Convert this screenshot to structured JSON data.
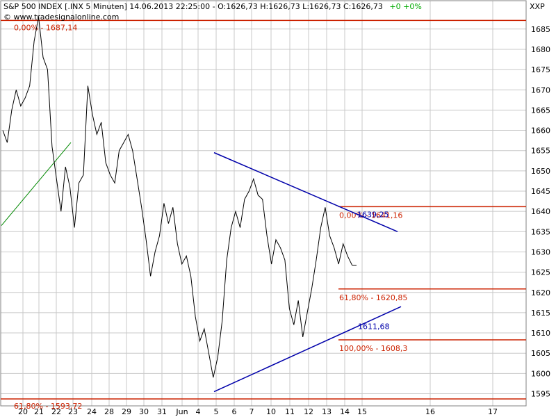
{
  "header": {
    "title": "S&P 500 INDEX [.INX  5 Minuten] 14.06.2013 22:25:00 - O:1626,73 H:1626,73 L:1626,73 C:1626,73",
    "change": "+0  +0%",
    "watermark": "© www.tradesignalonline.com",
    "corner_label": "XXP"
  },
  "chart_data": {
    "type": "line",
    "title": "S&P 500 INDEX [.INX  5 Minuten]",
    "timestamp": "14.06.2013 22:25:00",
    "ylim": [
      1592,
      1692
    ],
    "y_ticks": [
      1595,
      1600,
      1605,
      1610,
      1615,
      1620,
      1625,
      1630,
      1635,
      1640,
      1645,
      1650,
      1655,
      1660,
      1665,
      1670,
      1675,
      1680,
      1685
    ],
    "x_tick_labels": [
      "20",
      "21",
      "22",
      "23",
      "24",
      "28",
      "29",
      "30",
      "31",
      "Jun",
      "4",
      "5",
      "6",
      "7",
      "10",
      "11",
      "12",
      "13",
      "14",
      "15",
      "16",
      "17"
    ],
    "series": [
      {
        "x": [
          0,
          1,
          2,
          3,
          4,
          5,
          6,
          7,
          8,
          8.5,
          9,
          9.5,
          10,
          10.5,
          11,
          11.5,
          12,
          12.5,
          13,
          13.5,
          14,
          14.5,
          15,
          15.5,
          16,
          16.5,
          17,
          17.5,
          18,
          18.5,
          19,
          19.5,
          20,
          20.5,
          21,
          21.5,
          22,
          22.5,
          23,
          23.5,
          24,
          24.5,
          25,
          25.5,
          26,
          26.5,
          27,
          27.5,
          28,
          28.5,
          29,
          29.5,
          30,
          30.5,
          31,
          31.5,
          32,
          32.5,
          33,
          33.5,
          34,
          34.5,
          35,
          35.5,
          36,
          36.5,
          37,
          37.5,
          38,
          38.5,
          39,
          39.5,
          40,
          40.5,
          41,
          41.5,
          42,
          42.5,
          43,
          43.5,
          44,
          44.5,
          45,
          45.5,
          46,
          46.5,
          47,
          47.5,
          48,
          48.5,
          49,
          49.5,
          50,
          50.5,
          51,
          51.5,
          52,
          52.5,
          53,
          53.5,
          54,
          54.5,
          55,
          55.5,
          56
        ],
        "values": [
          1660,
          1657,
          1665,
          1670,
          1666,
          1668,
          1671,
          1682,
          1688,
          1678,
          1675,
          1656,
          1648,
          1640,
          1651,
          1646,
          1636,
          1647,
          1649,
          1671,
          1664,
          1659,
          1662,
          1652,
          1649,
          1647,
          1655,
          1657,
          1659,
          1655,
          1648,
          1641,
          1633,
          1624,
          1630,
          1634,
          1642,
          1637,
          1641,
          1632,
          1627,
          1629,
          1624,
          1614,
          1608,
          1611,
          1605,
          1599,
          1604,
          1613,
          1628,
          1636,
          1640,
          1636,
          1643,
          1645,
          1648,
          1644,
          1643,
          1634,
          1627,
          1633,
          1631,
          1628,
          1616,
          1612,
          1618,
          1609,
          1615,
          1621,
          1628,
          1636,
          1641,
          1634,
          1631,
          1627,
          1632,
          1629,
          1626.73,
          1626.73,
          1626.73,
          1626.73,
          1626.73,
          1626.73,
          1626.73,
          1626.73,
          1626.73,
          1626.73,
          1626.73,
          1626.73,
          1626.73,
          1626.73,
          1626.73,
          1626.73,
          1626.73,
          1626.73,
          1626.73,
          1626.73,
          1626.73,
          1626.73,
          1626.73,
          1626.73,
          1626.73,
          1626.73,
          1626.73
        ]
      }
    ]
  },
  "annotations": {
    "fib_upper": [
      {
        "label": "0,00% - 1687,14",
        "price": 1687.14
      },
      {
        "label": "61,80% - 1593,72",
        "price": 1593.72
      }
    ],
    "fib_lower": [
      {
        "label": "0,00% - 1641,16",
        "price": 1641.16
      },
      {
        "label": "61,80% - 1620,85",
        "price": 1620.85
      },
      {
        "label": "100,00% - 1608,3",
        "price": 1608.3
      }
    ],
    "triangle_top_label": "1639,25",
    "triangle_bottom_label": "1611,68",
    "fib_color": "#cc2200",
    "trend_color": "#0000aa",
    "price_color": "#000000",
    "change_color": "#00aa00"
  }
}
